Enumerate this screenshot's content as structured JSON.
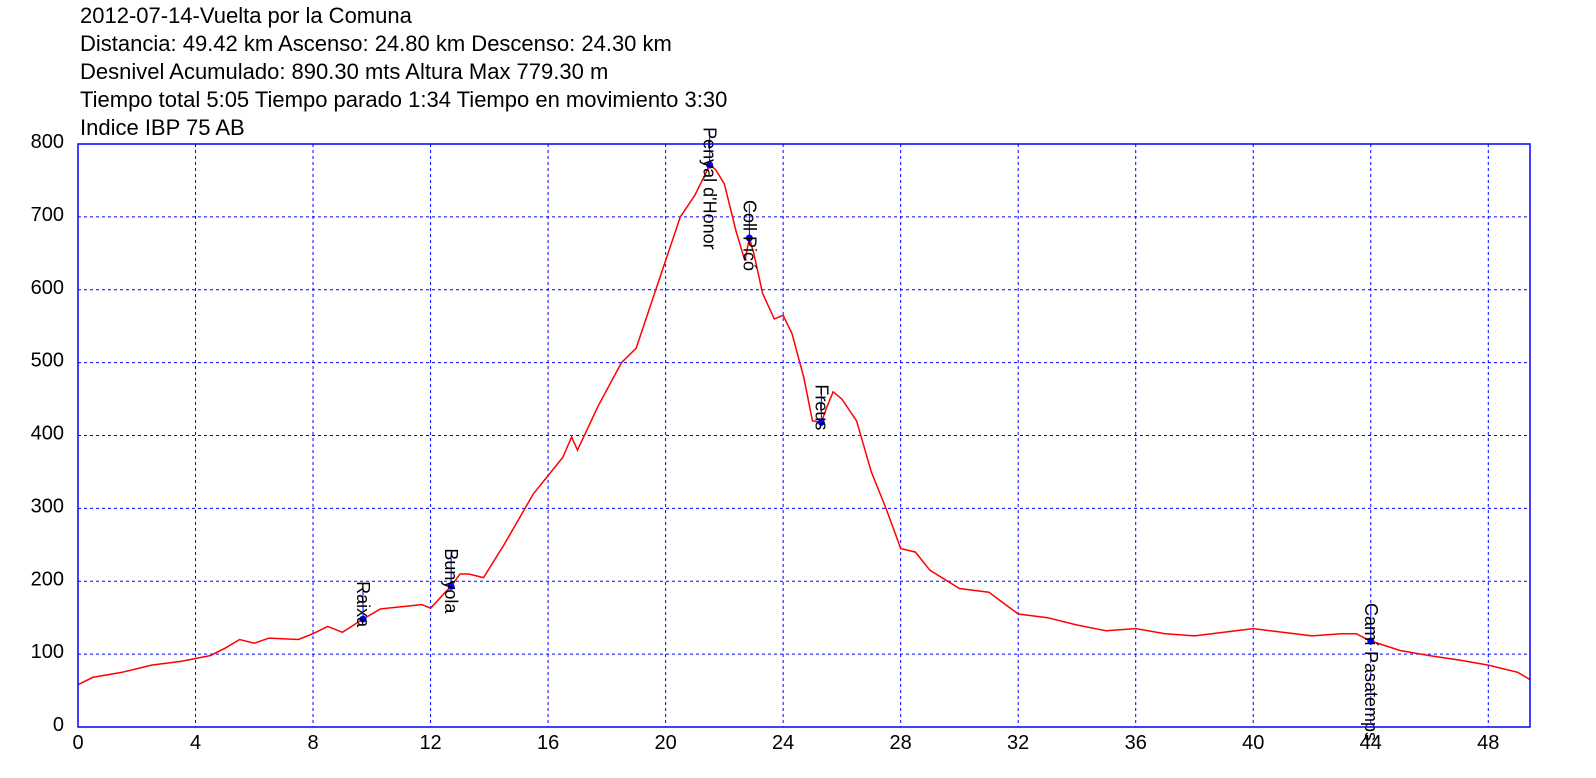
{
  "header": {
    "line1": "2012-07-14-Vuelta por la Comuna",
    "line2": "Distancia: 49.42 km Ascenso: 24.80 km Descenso: 24.30 km",
    "line3": "Desnivel Acumulado: 890.30 mts  Altura Max 779.30 m",
    "line4": "Tiempo total 5:05 Tiempo parado 1:34 Tiempo en movimiento 3:30",
    "line5": "Indice IBP 75 AB"
  },
  "colors": {
    "profile": "#ff0000",
    "axes": "#0000ff",
    "grid": "#0000ff",
    "waypoint": "#0000ff"
  },
  "chart_data": {
    "type": "line",
    "title": "",
    "xlabel": "",
    "ylabel": "",
    "xlim": [
      0,
      49.42
    ],
    "ylim": [
      0,
      800
    ],
    "xticks": [
      0,
      4,
      8,
      12,
      16,
      20,
      24,
      28,
      32,
      36,
      40,
      44,
      48
    ],
    "yticks": [
      0,
      100,
      200,
      300,
      400,
      500,
      600,
      700,
      800
    ],
    "grid": true,
    "series": [
      {
        "x": [
          0,
          0.5,
          1.5,
          2.5,
          3.5,
          4.5,
          5.0,
          5.5,
          6.0,
          6.5,
          7.5,
          8.0,
          8.5,
          9.0,
          9.7,
          10.3,
          11.0,
          11.7,
          12.0,
          12.5,
          12.7,
          13.0,
          13.3,
          13.8,
          14.5,
          15.5,
          16.5,
          16.8,
          17.0,
          17.7,
          18.5,
          19.0,
          19.5,
          20.0,
          20.5,
          21.0,
          21.5,
          21.7,
          22.0,
          22.4,
          22.7,
          22.85,
          23.0,
          23.3,
          23.7,
          24.0,
          24.3,
          24.7,
          25.0,
          25.3,
          25.5,
          25.7,
          26.0,
          26.5,
          27.0,
          27.5,
          28.0,
          28.5,
          29.0,
          30.0,
          31.0,
          31.5,
          32.0,
          33.0,
          34.0,
          35.0,
          36.0,
          37.0,
          38.0,
          39.0,
          40.0,
          41.0,
          42.0,
          43.0,
          43.5,
          44.0,
          45.0,
          46.0,
          47.0,
          48.0,
          49.0,
          49.42
        ],
        "y": [
          58,
          68,
          75,
          85,
          90,
          98,
          108,
          120,
          115,
          122,
          120,
          128,
          138,
          130,
          148,
          162,
          165,
          168,
          163,
          185,
          193,
          210,
          210,
          205,
          250,
          320,
          370,
          398,
          380,
          440,
          500,
          520,
          580,
          640,
          700,
          730,
          771,
          765,
          745,
          680,
          640,
          671,
          650,
          595,
          560,
          565,
          540,
          480,
          420,
          418,
          440,
          460,
          450,
          420,
          350,
          300,
          245,
          240,
          215,
          190,
          185,
          170,
          155,
          150,
          140,
          132,
          135,
          128,
          125,
          130,
          135,
          130,
          125,
          128,
          128,
          118,
          105,
          98,
          92,
          85,
          75,
          65
        ]
      }
    ],
    "waypoints": [
      {
        "name": "Raixa",
        "x": 9.7,
        "y": 148
      },
      {
        "name": "Bunyola",
        "x": 12.7,
        "y": 193
      },
      {
        "name": "Penyal d'Honor",
        "x": 21.5,
        "y": 771
      },
      {
        "name": "Coll Picó",
        "x": 22.85,
        "y": 671
      },
      {
        "name": "Freus",
        "x": 25.3,
        "y": 418
      },
      {
        "name": "Camí Pasatemps",
        "x": 44.0,
        "y": 118
      }
    ]
  }
}
